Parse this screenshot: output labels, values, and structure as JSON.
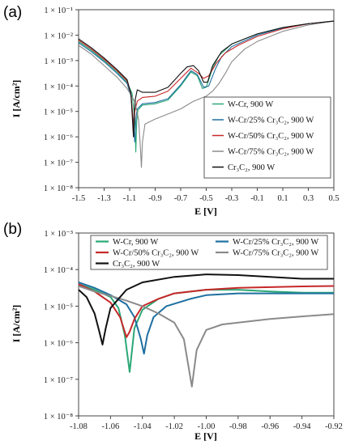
{
  "chart_data": [
    {
      "panel_label": "(a)",
      "type": "line",
      "xlabel": "E [V]",
      "ylabel": "I [A/cm²]",
      "x_ticks": [
        "-1.5",
        "-1.3",
        "-1.1",
        "-0.9",
        "-0.7",
        "-0.5",
        "-0.3",
        "-0.1",
        "0.1",
        "0.3",
        "0.5"
      ],
      "y_ticks": [
        "1 × 10⁻¹",
        "1 × 10⁻²",
        "1 × 10⁻³",
        "1 × 10⁻⁴",
        "1 × 10⁻⁵",
        "1 × 10⁻⁶",
        "1 × 10⁻⁷",
        "1 × 10⁻⁸"
      ],
      "xlim": [
        -1.5,
        0.5
      ],
      "ylim_exp": [
        -8,
        -1
      ],
      "y_scale": "log",
      "grid": false,
      "legend_position": "bottom-right",
      "series": [
        {
          "name": "W-Cr, 900 W",
          "color": "#2aa876",
          "points": [
            [
              -1.5,
              -2.25
            ],
            [
              -1.4,
              -2.6
            ],
            [
              -1.3,
              -3.0
            ],
            [
              -1.2,
              -3.45
            ],
            [
              -1.12,
              -3.85
            ],
            [
              -1.08,
              -4.3
            ],
            [
              -1.06,
              -5.3
            ],
            [
              -1.052,
              -6.6
            ],
            [
              -1.045,
              -5.4
            ],
            [
              -1.035,
              -4.95
            ],
            [
              -1.0,
              -4.75
            ],
            [
              -0.9,
              -4.7
            ],
            [
              -0.8,
              -4.55
            ],
            [
              -0.7,
              -4.0
            ],
            [
              -0.62,
              -3.45
            ],
            [
              -0.57,
              -3.6
            ],
            [
              -0.53,
              -4.1
            ],
            [
              -0.5,
              -4.05
            ],
            [
              -0.45,
              -3.3
            ],
            [
              -0.4,
              -2.8
            ],
            [
              -0.3,
              -2.35
            ],
            [
              -0.1,
              -1.95
            ],
            [
              0.1,
              -1.7
            ],
            [
              0.3,
              -1.55
            ],
            [
              0.5,
              -1.45
            ]
          ]
        },
        {
          "name": "W-Cr/25% Cr₃C₂, 900 W",
          "color": "#1e6fa0",
          "points": [
            [
              -1.5,
              -2.3
            ],
            [
              -1.4,
              -2.65
            ],
            [
              -1.3,
              -3.05
            ],
            [
              -1.2,
              -3.5
            ],
            [
              -1.12,
              -3.9
            ],
            [
              -1.09,
              -4.4
            ],
            [
              -1.07,
              -5.4
            ],
            [
              -1.06,
              -6.2
            ],
            [
              -1.05,
              -5.2
            ],
            [
              -1.04,
              -4.9
            ],
            [
              -1.0,
              -4.7
            ],
            [
              -0.9,
              -4.65
            ],
            [
              -0.8,
              -4.5
            ],
            [
              -0.7,
              -3.95
            ],
            [
              -0.62,
              -3.4
            ],
            [
              -0.57,
              -3.55
            ],
            [
              -0.52,
              -4.05
            ],
            [
              -0.48,
              -4.0
            ],
            [
              -0.43,
              -3.35
            ],
            [
              -0.38,
              -2.85
            ],
            [
              -0.3,
              -2.45
            ],
            [
              -0.1,
              -2.0
            ],
            [
              0.1,
              -1.72
            ],
            [
              0.3,
              -1.55
            ],
            [
              0.5,
              -1.45
            ]
          ]
        },
        {
          "name": "W-Cr/50% Cr₃C₂, 900 W",
          "color": "#c62828",
          "points": [
            [
              -1.5,
              -2.2
            ],
            [
              -1.4,
              -2.55
            ],
            [
              -1.3,
              -2.95
            ],
            [
              -1.2,
              -3.4
            ],
            [
              -1.12,
              -3.8
            ],
            [
              -1.09,
              -4.3
            ],
            [
              -1.075,
              -5.2
            ],
            [
              -1.07,
              -6.0
            ],
            [
              -1.06,
              -5.0
            ],
            [
              -1.04,
              -4.6
            ],
            [
              -1.0,
              -4.45
            ],
            [
              -0.9,
              -4.4
            ],
            [
              -0.8,
              -4.2
            ],
            [
              -0.7,
              -3.7
            ],
            [
              -0.62,
              -3.3
            ],
            [
              -0.56,
              -3.5
            ],
            [
              -0.52,
              -3.7
            ],
            [
              -0.48,
              -3.6
            ],
            [
              -0.42,
              -3.1
            ],
            [
              -0.35,
              -2.7
            ],
            [
              -0.25,
              -2.4
            ],
            [
              -0.1,
              -2.05
            ],
            [
              0.1,
              -1.75
            ],
            [
              0.3,
              -1.55
            ],
            [
              0.5,
              -1.45
            ]
          ]
        },
        {
          "name": "W-Cr/75% Cr₃C₂, 900 W",
          "color": "#8a8a8a",
          "points": [
            [
              -1.5,
              -2.4
            ],
            [
              -1.4,
              -2.75
            ],
            [
              -1.3,
              -3.2
            ],
            [
              -1.2,
              -3.65
            ],
            [
              -1.12,
              -4.1
            ],
            [
              -1.06,
              -4.6
            ],
            [
              -1.03,
              -5.3
            ],
            [
              -1.015,
              -6.5
            ],
            [
              -1.008,
              -7.2
            ],
            [
              -1.0,
              -6.2
            ],
            [
              -0.98,
              -5.5
            ],
            [
              -0.9,
              -5.3
            ],
            [
              -0.8,
              -5.1
            ],
            [
              -0.7,
              -4.9
            ],
            [
              -0.6,
              -4.6
            ],
            [
              -0.5,
              -4.4
            ],
            [
              -0.45,
              -4.2
            ],
            [
              -0.4,
              -3.9
            ],
            [
              -0.35,
              -3.5
            ],
            [
              -0.3,
              -3.05
            ],
            [
              -0.2,
              -2.55
            ],
            [
              -0.1,
              -2.25
            ],
            [
              0.1,
              -1.85
            ],
            [
              0.3,
              -1.6
            ],
            [
              0.5,
              -1.45
            ]
          ]
        },
        {
          "name": "Cr₃C₂, 900 W",
          "color": "#111111",
          "points": [
            [
              -1.5,
              -2.15
            ],
            [
              -1.4,
              -2.5
            ],
            [
              -1.3,
              -2.9
            ],
            [
              -1.2,
              -3.35
            ],
            [
              -1.12,
              -3.75
            ],
            [
              -1.09,
              -4.3
            ],
            [
              -1.07,
              -6.0
            ],
            [
              -1.063,
              -5.0
            ],
            [
              -1.055,
              -4.5
            ],
            [
              -1.04,
              -4.15
            ],
            [
              -1.0,
              -4.25
            ],
            [
              -0.9,
              -4.25
            ],
            [
              -0.8,
              -4.05
            ],
            [
              -0.7,
              -3.5
            ],
            [
              -0.65,
              -3.25
            ],
            [
              -0.6,
              -3.2
            ],
            [
              -0.56,
              -3.4
            ],
            [
              -0.52,
              -3.85
            ],
            [
              -0.49,
              -3.85
            ],
            [
              -0.45,
              -3.2
            ],
            [
              -0.38,
              -2.65
            ],
            [
              -0.3,
              -2.35
            ],
            [
              -0.1,
              -1.95
            ],
            [
              0.1,
              -1.7
            ],
            [
              0.3,
              -1.55
            ],
            [
              0.5,
              -1.45
            ]
          ]
        }
      ]
    },
    {
      "panel_label": "(b)",
      "type": "line",
      "xlabel": "E [V]",
      "ylabel": "I [A/cm²]",
      "x_ticks": [
        "-1.08",
        "-1.06",
        "-1.04",
        "-1.02",
        "-1.00",
        "-0.98",
        "-0.96",
        "-0.94",
        "-0.92"
      ],
      "y_ticks": [
        "1 × 10⁻³",
        "1 × 10⁻⁴",
        "1 × 10⁻⁵",
        "1 × 10⁻⁶",
        "1 × 10⁻⁷",
        "1 × 10⁻⁸"
      ],
      "xlim": [
        -1.08,
        -0.92
      ],
      "ylim_exp": [
        -8,
        -3
      ],
      "y_scale": "log",
      "grid": false,
      "legend_position": "top",
      "series": [
        {
          "name": "W-Cr, 900 W",
          "color": "#2aa876",
          "points": [
            [
              -1.08,
              -4.4
            ],
            [
              -1.07,
              -4.55
            ],
            [
              -1.06,
              -4.75
            ],
            [
              -1.055,
              -5.05
            ],
            [
              -1.051,
              -5.8
            ],
            [
              -1.048,
              -6.8
            ],
            [
              -1.045,
              -5.6
            ],
            [
              -1.04,
              -5.1
            ],
            [
              -1.03,
              -4.8
            ],
            [
              -1.02,
              -4.65
            ],
            [
              -1.0,
              -4.55
            ],
            [
              -0.98,
              -4.55
            ],
            [
              -0.96,
              -4.6
            ],
            [
              -0.94,
              -4.63
            ],
            [
              -0.92,
              -4.63
            ]
          ]
        },
        {
          "name": "W-Cr/25% Cr₃C₂, 900 W",
          "color": "#1e6fa0",
          "points": [
            [
              -1.08,
              -4.35
            ],
            [
              -1.07,
              -4.5
            ],
            [
              -1.06,
              -4.7
            ],
            [
              -1.05,
              -4.95
            ],
            [
              -1.045,
              -5.3
            ],
            [
              -1.041,
              -5.9
            ],
            [
              -1.039,
              -6.3
            ],
            [
              -1.037,
              -5.8
            ],
            [
              -1.033,
              -5.3
            ],
            [
              -1.025,
              -5.0
            ],
            [
              -1.01,
              -4.8
            ],
            [
              -1.0,
              -4.7
            ],
            [
              -0.98,
              -4.65
            ],
            [
              -0.96,
              -4.65
            ],
            [
              -0.94,
              -4.65
            ],
            [
              -0.92,
              -4.65
            ]
          ]
        },
        {
          "name": "W-Cr/50% Cr₃C₂, 900 W",
          "color": "#c62828",
          "points": [
            [
              -1.08,
              -4.4
            ],
            [
              -1.07,
              -4.6
            ],
            [
              -1.06,
              -4.9
            ],
            [
              -1.054,
              -5.3
            ],
            [
              -1.05,
              -5.85
            ],
            [
              -1.048,
              -5.7
            ],
            [
              -1.045,
              -5.35
            ],
            [
              -1.04,
              -5.0
            ],
            [
              -1.03,
              -4.8
            ],
            [
              -1.02,
              -4.65
            ],
            [
              -1.0,
              -4.55
            ],
            [
              -0.98,
              -4.5
            ],
            [
              -0.96,
              -4.48
            ],
            [
              -0.94,
              -4.46
            ],
            [
              -0.92,
              -4.45
            ]
          ]
        },
        {
          "name": "W-Cr/75% Cr₃C₂, 900 W",
          "color": "#8a8a8a",
          "points": [
            [
              -1.08,
              -4.45
            ],
            [
              -1.07,
              -4.6
            ],
            [
              -1.06,
              -4.72
            ],
            [
              -1.05,
              -4.85
            ],
            [
              -1.04,
              -5.0
            ],
            [
              -1.03,
              -5.2
            ],
            [
              -1.02,
              -5.45
            ],
            [
              -1.014,
              -5.9
            ],
            [
              -1.009,
              -7.2
            ],
            [
              -1.006,
              -6.2
            ],
            [
              -1.0,
              -5.65
            ],
            [
              -0.99,
              -5.5
            ],
            [
              -0.98,
              -5.45
            ],
            [
              -0.96,
              -5.35
            ],
            [
              -0.94,
              -5.28
            ],
            [
              -0.92,
              -5.22
            ]
          ]
        },
        {
          "name": "Cr₃C₂, 900 W",
          "color": "#111111",
          "points": [
            [
              -1.08,
              -4.55
            ],
            [
              -1.075,
              -4.75
            ],
            [
              -1.07,
              -5.2
            ],
            [
              -1.067,
              -5.7
            ],
            [
              -1.065,
              -6.05
            ],
            [
              -1.063,
              -5.6
            ],
            [
              -1.06,
              -5.05
            ],
            [
              -1.05,
              -4.55
            ],
            [
              -1.04,
              -4.35
            ],
            [
              -1.02,
              -4.2
            ],
            [
              -1.0,
              -4.13
            ],
            [
              -0.98,
              -4.15
            ],
            [
              -0.96,
              -4.2
            ],
            [
              -0.94,
              -4.25
            ],
            [
              -0.92,
              -4.25
            ]
          ]
        }
      ]
    }
  ]
}
